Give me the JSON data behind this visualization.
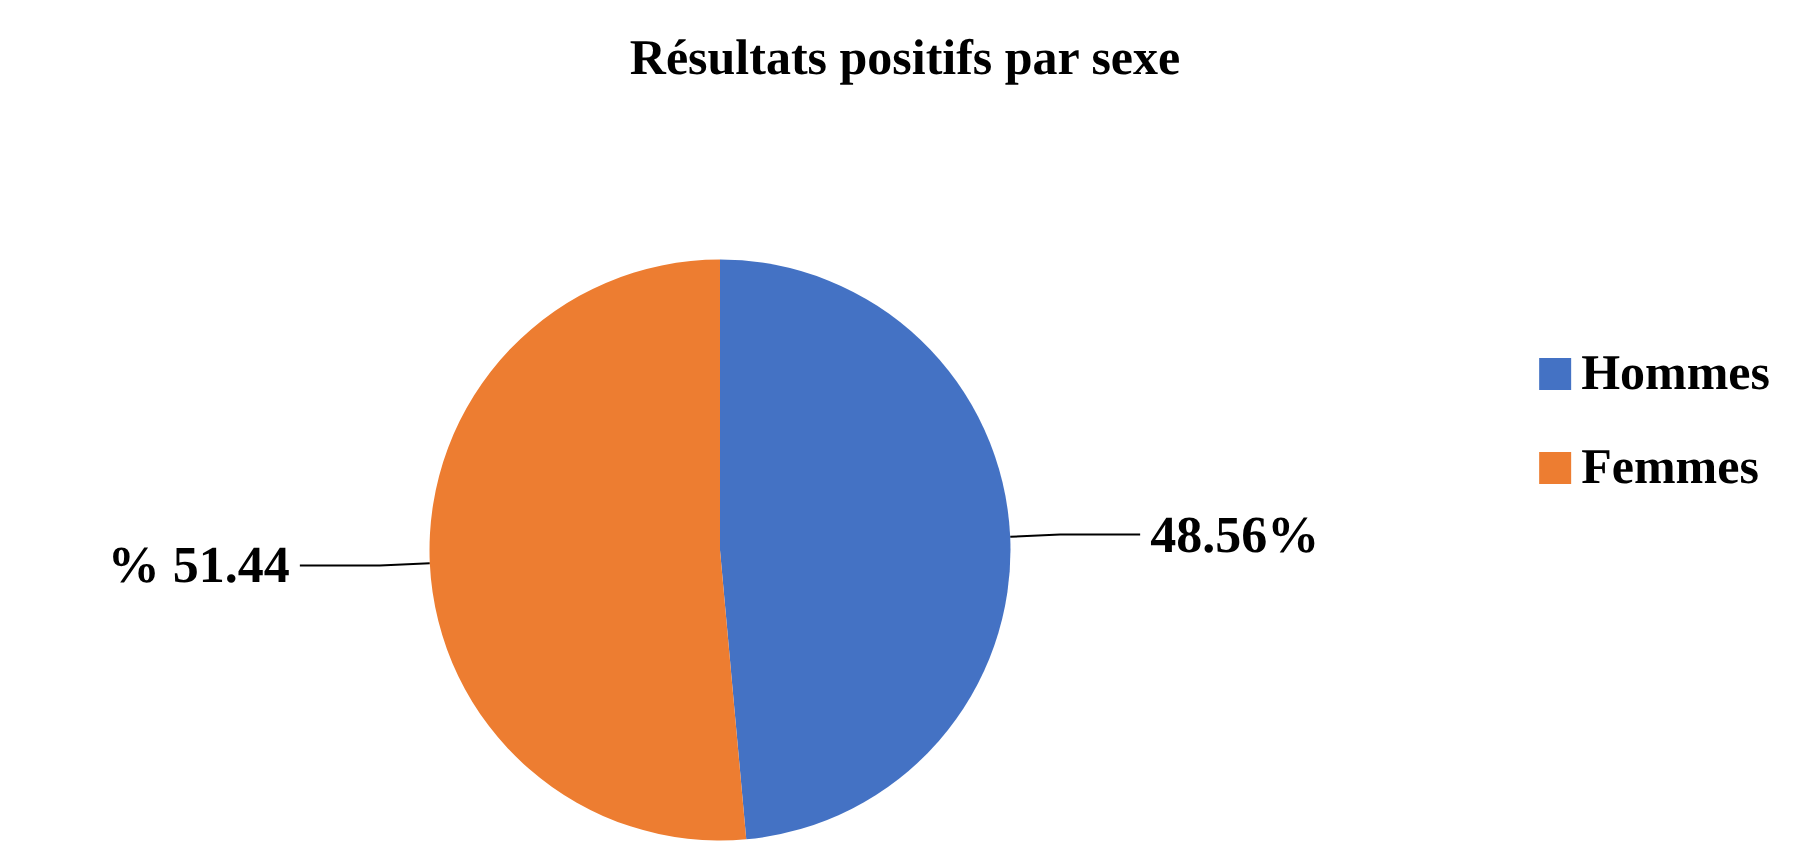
{
  "chart_data": {
    "type": "pie",
    "title": "Résultats positifs par sexe",
    "categories": [
      "Hommes",
      "Femmes"
    ],
    "values": [
      48.56,
      51.44
    ],
    "colors": [
      "#4472c4",
      "#ed7d31"
    ],
    "value_labels": [
      "48.56%",
      "% 51.44"
    ],
    "legend": "right"
  }
}
